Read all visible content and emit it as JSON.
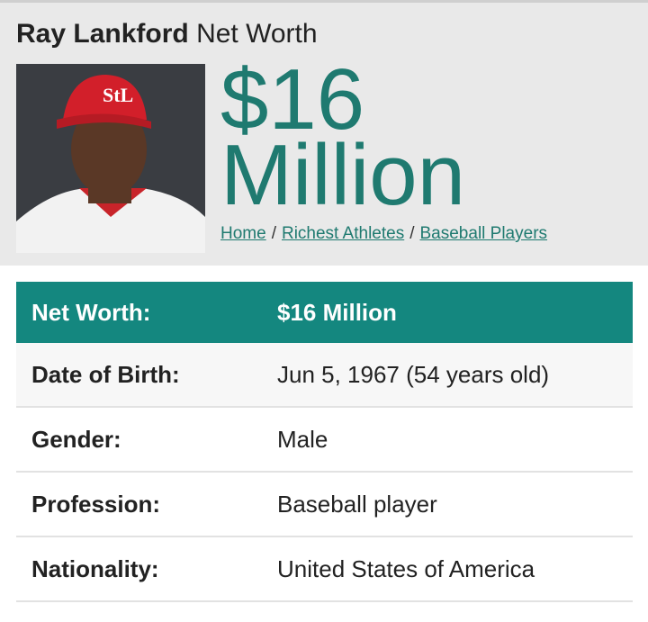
{
  "header": {
    "name": "Ray Lankford",
    "suffix": "Net Worth",
    "net_worth": "$16 Million",
    "breadcrumbs": [
      "Home",
      "Richest Athletes",
      "Baseball Players"
    ],
    "separator": "/"
  },
  "table": {
    "rows": [
      [
        "Net Worth:",
        "$16 Million"
      ],
      [
        "Date of Birth:",
        "Jun 5, 1967 (54 years old)"
      ],
      [
        "Gender:",
        "Male"
      ],
      [
        "Profession:",
        "Baseball player"
      ],
      [
        "Nationality:",
        "United States of America"
      ]
    ]
  }
}
